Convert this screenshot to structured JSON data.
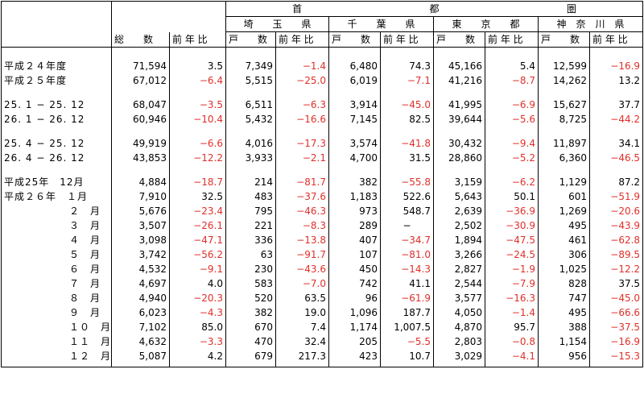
{
  "header": {
    "shuto": "首",
    "to": "都",
    "ken": "圏",
    "sokazu": "総　　数",
    "zennenhi": "前 年 比",
    "kosu": "戸　　数",
    "prefectures": [
      "埼　　玉　　県",
      "千　　葉　　県",
      "東　　京　　都",
      "神　奈　川　県"
    ]
  },
  "groups": [
    {
      "rows": [
        {
          "label": "平成２４年度",
          "total": "71,594",
          "total_ratio": "3.5",
          "p1": "7,349",
          "p1r": "−1.4",
          "p2": "6,480",
          "p2r": "74.3",
          "p3": "45,166",
          "p3r": "5.4",
          "p4": "12,599",
          "p4r": "−16.9"
        },
        {
          "label": "平成２５年度",
          "total": "67,012",
          "total_ratio": "−6.4",
          "p1": "5,515",
          "p1r": "−25.0",
          "p2": "6,019",
          "p2r": "−7.1",
          "p3": "41,216",
          "p3r": "−8.7",
          "p4": "14,262",
          "p4r": "13.2"
        }
      ]
    },
    {
      "rows": [
        {
          "label": "25. 1 − 25. 12",
          "total": "68,047",
          "total_ratio": "−3.5",
          "p1": "6,511",
          "p1r": "−6.3",
          "p2": "3,914",
          "p2r": "−45.0",
          "p3": "41,995",
          "p3r": "−6.9",
          "p4": "15,627",
          "p4r": "37.7"
        },
        {
          "label": "26. 1 − 26. 12",
          "total": "60,946",
          "total_ratio": "−10.4",
          "p1": "5,432",
          "p1r": "−16.6",
          "p2": "7,145",
          "p2r": "82.5",
          "p3": "39,644",
          "p3r": "−5.6",
          "p4": "8,725",
          "p4r": "−44.2"
        }
      ]
    },
    {
      "rows": [
        {
          "label": "25. 4 − 25. 12",
          "total": "49,919",
          "total_ratio": "−6.6",
          "p1": "4,016",
          "p1r": "−17.3",
          "p2": "3,574",
          "p2r": "−41.8",
          "p3": "30,432",
          "p3r": "−9.4",
          "p4": "11,897",
          "p4r": "34.1"
        },
        {
          "label": "26. 4 − 26. 12",
          "total": "43,853",
          "total_ratio": "−12.2",
          "p1": "3,933",
          "p1r": "−2.1",
          "p2": "4,700",
          "p2r": "31.5",
          "p3": "28,860",
          "p3r": "−5.2",
          "p4": "6,360",
          "p4r": "−46.5"
        }
      ]
    },
    {
      "rows": [
        {
          "label": "平成25年　12月",
          "total": "4,884",
          "total_ratio": "−18.7",
          "p1": "214",
          "p1r": "−81.7",
          "p2": "382",
          "p2r": "−55.8",
          "p3": "3,159",
          "p3r": "−6.2",
          "p4": "1,129",
          "p4r": "87.2"
        },
        {
          "label": "平成２６年　１月",
          "total": "7,910",
          "total_ratio": "32.5",
          "p1": "483",
          "p1r": "−37.6",
          "p2": "1,183",
          "p2r": "522.6",
          "p3": "5,643",
          "p3r": "50.1",
          "p4": "601",
          "p4r": "−51.9"
        },
        {
          "label": "２　月",
          "total": "5,676",
          "total_ratio": "−23.4",
          "p1": "795",
          "p1r": "−46.3",
          "p2": "973",
          "p2r": "548.7",
          "p3": "2,639",
          "p3r": "−36.9",
          "p4": "1,269",
          "p4r": "−20.6"
        },
        {
          "label": "３　月",
          "total": "3,507",
          "total_ratio": "−26.1",
          "p1": "221",
          "p1r": "−8.3",
          "p2": "289",
          "p2r": "−",
          "p3": "2,502",
          "p3r": "−30.9",
          "p4": "495",
          "p4r": "−43.9"
        },
        {
          "label": "４　月",
          "total": "3,098",
          "total_ratio": "−47.1",
          "p1": "336",
          "p1r": "−13.8",
          "p2": "407",
          "p2r": "−34.7",
          "p3": "1,894",
          "p3r": "−47.5",
          "p4": "461",
          "p4r": "−62.8"
        },
        {
          "label": "５　月",
          "total": "3,742",
          "total_ratio": "−56.2",
          "p1": "63",
          "p1r": "−91.7",
          "p2": "107",
          "p2r": "−81.0",
          "p3": "3,266",
          "p3r": "−24.5",
          "p4": "306",
          "p4r": "−89.5"
        },
        {
          "label": "６　月",
          "total": "4,532",
          "total_ratio": "−9.1",
          "p1": "230",
          "p1r": "−43.6",
          "p2": "450",
          "p2r": "−14.3",
          "p3": "2,827",
          "p3r": "−1.9",
          "p4": "1,025",
          "p4r": "−12.2"
        },
        {
          "label": "７　月",
          "total": "4,697",
          "total_ratio": "4.0",
          "p1": "583",
          "p1r": "−7.0",
          "p2": "742",
          "p2r": "41.1",
          "p3": "2,544",
          "p3r": "−7.9",
          "p4": "828",
          "p4r": "37.5"
        },
        {
          "label": "８　月",
          "total": "4,940",
          "total_ratio": "−20.3",
          "p1": "520",
          "p1r": "63.5",
          "p2": "96",
          "p2r": "−61.9",
          "p3": "3,577",
          "p3r": "−16.3",
          "p4": "747",
          "p4r": "−45.0"
        },
        {
          "label": "９　月",
          "total": "6,023",
          "total_ratio": "−4.3",
          "p1": "382",
          "p1r": "19.0",
          "p2": "1,096",
          "p2r": "187.7",
          "p3": "4,050",
          "p3r": "−1.4",
          "p4": "495",
          "p4r": "−66.6"
        },
        {
          "label": "１０　月",
          "total": "7,102",
          "total_ratio": "85.0",
          "p1": "670",
          "p1r": "7.4",
          "p2": "1,174",
          "p2r": "1,007.5",
          "p3": "4,870",
          "p3r": "95.7",
          "p4": "388",
          "p4r": "−37.5"
        },
        {
          "label": "１１　月",
          "total": "4,632",
          "total_ratio": "−3.3",
          "p1": "470",
          "p1r": "32.4",
          "p2": "205",
          "p2r": "−5.5",
          "p3": "2,803",
          "p3r": "−0.8",
          "p4": "1,154",
          "p4r": "−16.9"
        },
        {
          "label": "１２　月",
          "total": "5,087",
          "total_ratio": "4.2",
          "p1": "679",
          "p1r": "217.3",
          "p2": "423",
          "p2r": "10.7",
          "p3": "3,029",
          "p3r": "−4.1",
          "p4": "956",
          "p4r": "−15.3"
        }
      ]
    }
  ]
}
